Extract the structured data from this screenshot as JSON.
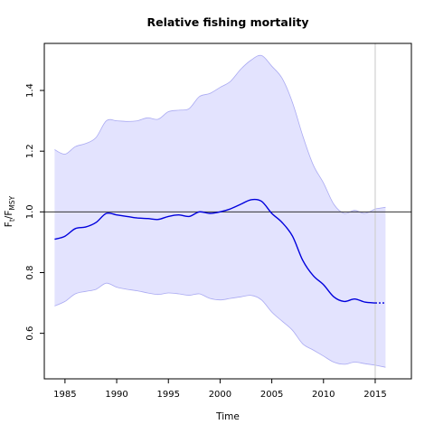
{
  "chart_data": {
    "type": "line",
    "title": "Relative fishing mortality",
    "xlabel": "Time",
    "ylabel": {
      "base": "F",
      "sub1": "t",
      "sep": "/F",
      "sub2": "MSY"
    },
    "xlim": [
      1983,
      2018.5
    ],
    "ylim": [
      0.45,
      1.555
    ],
    "x_ticks": [
      1985,
      1990,
      1995,
      2000,
      2005,
      2010,
      2015
    ],
    "y_ticks": [
      0.6,
      0.8,
      1.0,
      1.2,
      1.4
    ],
    "reference_line_y": 1.0,
    "vertical_marker_x": 2015,
    "colors": {
      "estimate": "#0000dd",
      "band_fill": "#e3e3fe",
      "band_edge": "#aaaaf2",
      "reference": "#333333",
      "marker": "#d0d0d0"
    },
    "series": [
      {
        "role": "estimate",
        "x": [
          1984,
          1985,
          1986,
          1987,
          1988,
          1989,
          1990,
          1991,
          1992,
          1993,
          1994,
          1995,
          1996,
          1997,
          1998,
          1999,
          2000,
          2001,
          2002,
          2003,
          2004,
          2005,
          2006,
          2007,
          2008,
          2009,
          2010,
          2011,
          2012,
          2013,
          2014,
          2015
        ],
        "y": [
          0.91,
          0.92,
          0.945,
          0.95,
          0.965,
          0.995,
          0.99,
          0.985,
          0.98,
          0.978,
          0.975,
          0.985,
          0.99,
          0.985,
          1.0,
          0.995,
          1.0,
          1.01,
          1.025,
          1.04,
          1.035,
          0.995,
          0.965,
          0.92,
          0.84,
          0.79,
          0.76,
          0.72,
          0.705,
          0.713,
          0.703,
          0.7
        ],
        "lower": [
          0.69,
          0.705,
          0.73,
          0.738,
          0.745,
          0.765,
          0.752,
          0.745,
          0.74,
          0.733,
          0.728,
          0.733,
          0.73,
          0.725,
          0.73,
          0.715,
          0.71,
          0.715,
          0.72,
          0.725,
          0.71,
          0.67,
          0.64,
          0.61,
          0.565,
          0.545,
          0.525,
          0.505,
          0.498,
          0.505,
          0.5,
          0.495
        ],
        "upper": [
          1.205,
          1.19,
          1.215,
          1.225,
          1.245,
          1.3,
          1.3,
          1.298,
          1.3,
          1.31,
          1.305,
          1.33,
          1.335,
          1.34,
          1.38,
          1.39,
          1.41,
          1.43,
          1.47,
          1.5,
          1.515,
          1.48,
          1.44,
          1.36,
          1.25,
          1.155,
          1.095,
          1.025,
          0.995,
          1.005,
          0.995,
          1.01
        ]
      },
      {
        "role": "prediction",
        "x": [
          2015,
          2016
        ],
        "y": [
          0.7,
          0.7
        ],
        "lower": [
          0.495,
          0.488
        ],
        "upper": [
          1.01,
          1.015
        ]
      }
    ]
  }
}
